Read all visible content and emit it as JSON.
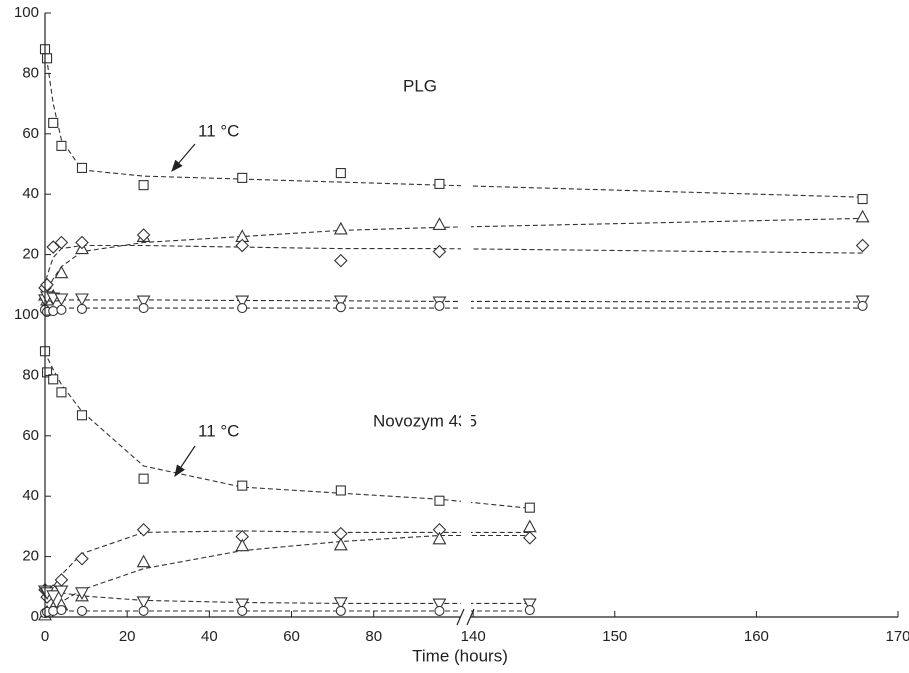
{
  "chart_data": [
    {
      "type": "scatter",
      "color": "#333333",
      "annotations": [
        {
          "text": "PLG"
        },
        {
          "text": "11 °C"
        }
      ],
      "ylim": [
        0,
        100
      ],
      "yticks": [
        20,
        40,
        60,
        80,
        100
      ],
      "x": [
        0,
        0.5,
        2,
        4,
        9,
        24,
        48,
        72,
        96,
        167.5
      ],
      "series": [
        {
          "marker": "square",
          "values": [
            88,
            85,
            63.6,
            56,
            48.7,
            43,
            45.4,
            47,
            43.4,
            38.4
          ],
          "fit": [
            88,
            84,
            70,
            58,
            48,
            46,
            45,
            44,
            43,
            39
          ]
        },
        {
          "marker": "triangle-up",
          "values": [
            6.6,
            5,
            6.3,
            14,
            22,
            26,
            26,
            28.5,
            30,
            32.5
          ],
          "fit": [
            6,
            8,
            12,
            16,
            21,
            24,
            26,
            28,
            29,
            32
          ]
        },
        {
          "marker": "diamond",
          "values": [
            9,
            10,
            22.5,
            24,
            24,
            26.5,
            23,
            18,
            21,
            23
          ],
          "fit": [
            9,
            13,
            19,
            22,
            23,
            23,
            22.5,
            22,
            22,
            20.5
          ]
        },
        {
          "marker": "triangle-down",
          "values": [
            5,
            6,
            5.6,
            5.3,
            5.3,
            4.6,
            4.6,
            4.6,
            4.3,
            4.6
          ],
          "fit": [
            5,
            5,
            5,
            5,
            5,
            5,
            4.8,
            4.7,
            4.5,
            4.3
          ]
        },
        {
          "marker": "circle",
          "values": [
            1.7,
            1,
            1.3,
            1.7,
            2,
            2.3,
            2.3,
            2.6,
            3,
            3
          ],
          "fit": [
            2.3,
            2.3,
            2.3,
            2.3,
            2.3,
            2.3,
            2.3,
            2.3,
            2.3,
            2.3
          ]
        }
      ]
    },
    {
      "type": "scatter",
      "color": "#333333",
      "annotations": [
        {
          "text": "Novozym 435"
        },
        {
          "text": "11 °C"
        }
      ],
      "x_label": "Time (hours)",
      "xlim": [
        0,
        101
      ],
      "xticks": [
        0,
        20,
        40,
        60,
        80
      ],
      "x2lim": [
        139,
        170
      ],
      "x2ticks": [
        140,
        150,
        160,
        170
      ],
      "ylim": [
        0,
        100
      ],
      "yticks": [
        0,
        20,
        40,
        60,
        80,
        100
      ],
      "x": [
        0,
        0.5,
        2,
        4,
        9,
        24,
        48,
        72,
        96,
        144
      ],
      "series": [
        {
          "marker": "square",
          "values": [
            88,
            81,
            78.7,
            74.4,
            66.8,
            45.8,
            43.5,
            41.9,
            38.5,
            36.2
          ],
          "fit": [
            88,
            86,
            82,
            77,
            68,
            50,
            43,
            41,
            39,
            36
          ]
        },
        {
          "marker": "diamond",
          "values": [
            9,
            6.6,
            8.6,
            12.3,
            19.3,
            28.9,
            26.6,
            27.6,
            28.9,
            26.2
          ],
          "fit": [
            6,
            7,
            10,
            14,
            21,
            28,
            28.5,
            28,
            28,
            28
          ]
        },
        {
          "marker": "triangle-up",
          "values": [
            0.7,
            1.7,
            3,
            4,
            7,
            18.3,
            23.6,
            23.9,
            25.9,
            29.9
          ],
          "fit": [
            1,
            1.5,
            3,
            5,
            9,
            16,
            22,
            25,
            27,
            27
          ]
        },
        {
          "marker": "triangle-down",
          "values": [
            8.6,
            8,
            7,
            8.6,
            8,
            5,
            4.3,
            4.7,
            4.3,
            4.3
          ],
          "fit": [
            9,
            9,
            8.5,
            8,
            7,
            5.5,
            4.8,
            4.5,
            4.5,
            4.5
          ]
        },
        {
          "marker": "circle",
          "values": [
            1.3,
            1.7,
            2,
            2.3,
            2,
            2,
            2,
            2,
            2,
            2.3
          ],
          "fit": [
            2,
            2,
            2,
            2,
            2,
            2,
            2,
            2,
            2,
            2
          ]
        }
      ]
    }
  ]
}
